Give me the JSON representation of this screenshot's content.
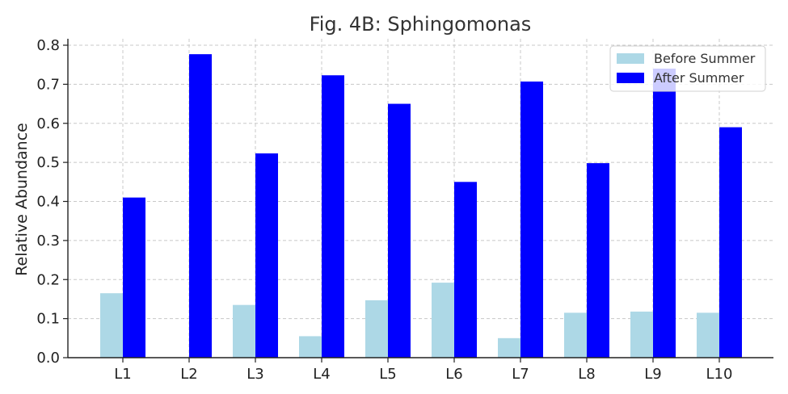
{
  "chart_data": {
    "type": "bar",
    "title": "Fig. 4B: Sphingomonas",
    "xlabel": "",
    "ylabel": "Relative Abundance",
    "categories": [
      "L1",
      "L2",
      "L3",
      "L4",
      "L5",
      "L6",
      "L7",
      "L8",
      "L9",
      "L10"
    ],
    "ylim": [
      0,
      0.8
    ],
    "yticks": [
      "0.0",
      "0.1",
      "0.2",
      "0.3",
      "0.4",
      "0.5",
      "0.6",
      "0.7",
      "0.8"
    ],
    "grid": true,
    "legend_position": "top-right",
    "series": [
      {
        "name": "Before Summer",
        "color": "#add8e6",
        "values": [
          0.165,
          0.0,
          0.135,
          0.055,
          0.147,
          0.192,
          0.05,
          0.115,
          0.118,
          0.115
        ]
      },
      {
        "name": "After Summer",
        "color": "#0000ff",
        "values": [
          0.41,
          0.777,
          0.523,
          0.723,
          0.65,
          0.45,
          0.707,
          0.498,
          0.74,
          0.59
        ]
      }
    ]
  }
}
